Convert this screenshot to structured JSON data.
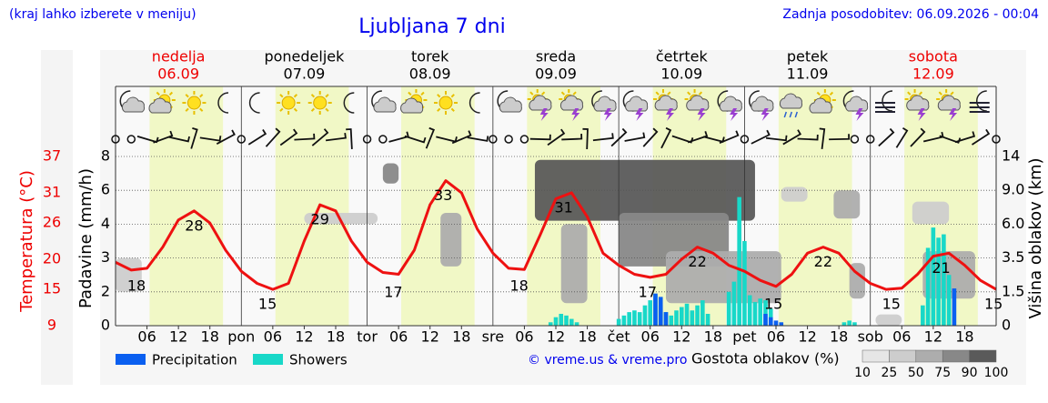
{
  "header": {
    "hint": "(kraj lahko izberete v meniju)",
    "title": "Ljubljana 7 dni",
    "updated": "Zadnja posodobitev: 06.09.2026 - 00:04"
  },
  "days": [
    {
      "name": "nedelja",
      "date": "06.09",
      "color": "#ee0000"
    },
    {
      "name": "ponedeljek",
      "date": "07.09",
      "color": "#000000"
    },
    {
      "name": "torek",
      "date": "08.09",
      "color": "#000000"
    },
    {
      "name": "sreda",
      "date": "09.09",
      "color": "#000000"
    },
    {
      "name": "četrtek",
      "date": "10.09",
      "color": "#000000"
    },
    {
      "name": "petek",
      "date": "11.09",
      "color": "#000000"
    },
    {
      "name": "sobota",
      "date": "12.09",
      "color": "#ee0000"
    }
  ],
  "credit": "© vreme.us & vreme.pro",
  "chart_data": [
    {
      "type": "line",
      "y_label": "Temperatura (°C)",
      "color": "#ee1111",
      "ylim": [
        9,
        37
      ],
      "yticks": [
        37,
        31,
        26,
        20,
        15,
        9
      ],
      "x": [
        0,
        3,
        6,
        9,
        12,
        15,
        18,
        21,
        24,
        27,
        30,
        33,
        36,
        39,
        42,
        45,
        48,
        51,
        54,
        57,
        60,
        63,
        66,
        69,
        72,
        75,
        78,
        81,
        84,
        87,
        90,
        93,
        96,
        99,
        102,
        105,
        108,
        111,
        114,
        117,
        120,
        123,
        126,
        129,
        132,
        135,
        138,
        141,
        144,
        147,
        150,
        153,
        156,
        159,
        162,
        165,
        168
      ],
      "values": [
        19.5,
        18.2,
        18.5,
        22,
        26.5,
        28,
        26,
        21.5,
        18,
        16,
        15,
        16,
        23,
        29,
        28,
        23,
        19.5,
        17.8,
        17.5,
        21.5,
        29,
        33,
        31,
        25,
        21,
        18.5,
        18.3,
        24,
        30,
        31,
        27,
        21,
        19,
        17.5,
        17,
        17.5,
        20,
        22,
        21,
        19,
        18,
        16.5,
        15.5,
        17.5,
        21,
        22,
        21,
        18,
        16,
        15,
        15.2,
        17.5,
        20.5,
        21,
        19,
        16.5,
        15
      ],
      "labels": [
        {
          "x": 4,
          "value": 18
        },
        {
          "x": 15,
          "value": 28
        },
        {
          "x": 29,
          "value": 15
        },
        {
          "x": 39,
          "value": 29
        },
        {
          "x": 53,
          "value": 17
        },
        {
          "x": 62.5,
          "value": 33
        },
        {
          "x": 77,
          "value": 18
        },
        {
          "x": 85.5,
          "value": 31
        },
        {
          "x": 101.5,
          "value": 17
        },
        {
          "x": 111,
          "value": 22
        },
        {
          "x": 125.5,
          "value": 15
        },
        {
          "x": 135,
          "value": 22
        },
        {
          "x": 148,
          "value": 15
        },
        {
          "x": 157.5,
          "value": 21
        },
        {
          "x": 167.5,
          "value": 15
        }
      ]
    },
    {
      "type": "bar",
      "y_label": "Padavine (mm/h)",
      "ylim": [
        0,
        8
      ],
      "yticks": [
        0,
        2,
        3,
        4,
        6,
        8
      ],
      "grid": true,
      "xlim": [
        0,
        168
      ],
      "xticks": [
        {
          "value": 6,
          "label": "06"
        },
        12,
        18,
        {
          "value": 24,
          "label": "pon"
        },
        {
          "value": 30,
          "label": "06"
        },
        {
          "value": 36,
          "label": "12"
        },
        {
          "value": 42,
          "label": "18"
        },
        {
          "value": 48,
          "label": "tor"
        },
        {
          "value": 54,
          "label": "06"
        },
        {
          "value": 60,
          "label": "12"
        },
        {
          "value": 66,
          "label": "18"
        },
        {
          "value": 72,
          "label": "sre"
        },
        {
          "value": 78,
          "label": "06"
        },
        {
          "value": 84,
          "label": "12"
        },
        {
          "value": 90,
          "label": "18"
        },
        {
          "value": 96,
          "label": "čet"
        },
        {
          "value": 102,
          "label": "06"
        },
        {
          "value": 108,
          "label": "12"
        },
        {
          "value": 114,
          "label": "18"
        },
        {
          "value": 120,
          "label": "pet"
        },
        {
          "value": 126,
          "label": "06"
        },
        {
          "value": 132,
          "label": "12"
        },
        {
          "value": 138,
          "label": "18"
        },
        {
          "value": 144,
          "label": "sob"
        },
        {
          "value": 150,
          "label": "06"
        },
        {
          "value": 156,
          "label": "12"
        },
        {
          "value": 162,
          "label": "18"
        }
      ],
      "series": [
        {
          "name": "Showers",
          "color": "#18d8c8",
          "x": [
            83,
            84,
            85,
            86,
            87,
            88,
            96,
            97,
            98,
            99,
            100,
            101,
            102,
            103,
            104,
            105,
            106,
            107,
            108,
            109,
            110,
            111,
            112,
            113,
            117,
            118,
            119,
            120,
            121,
            122,
            123,
            124,
            125,
            139,
            140,
            141,
            154,
            155,
            156,
            157,
            158,
            159
          ],
          "values": [
            0.2,
            0.5,
            0.7,
            0.6,
            0.4,
            0.2,
            0.4,
            0.6,
            0.8,
            0.9,
            0.8,
            1.2,
            1.5,
            1.8,
            1.2,
            0.8,
            0.6,
            0.9,
            1.1,
            1.3,
            0.9,
            1.2,
            1.5,
            0.7,
            2.0,
            2.3,
            5.6,
            3.5,
            1.8,
            1.4,
            1.6,
            1.5,
            1.0,
            0.2,
            0.3,
            0.2,
            1.2,
            3.3,
            3.9,
            3.6,
            3.7,
            2.5
          ]
        },
        {
          "name": "Precipitation",
          "color": "#0a5ff0",
          "x": [
            103,
            104,
            105,
            124,
            125,
            126,
            127,
            160
          ],
          "values": [
            1.9,
            1.7,
            0.8,
            0.7,
            0.5,
            0.3,
            0.2,
            2.1
          ]
        }
      ]
    },
    {
      "type": "heatmap",
      "y_label": "Višina oblakov (km)",
      "legend_title": "Gostota oblakov (%)",
      "ylim": [
        0,
        14
      ],
      "yticks": [
        0,
        1.5,
        3.5,
        {
          "value": 6,
          "label": "6.0"
        },
        {
          "value": 9,
          "label": "9.0"
        },
        14
      ],
      "legend_ticks": [
        10,
        25,
        50,
        75,
        90,
        100
      ],
      "colors": [
        "#e6e6e6",
        "#cdcdcd",
        "#adadad",
        "#888888",
        "#5a5a5a"
      ],
      "clouds": [
        {
          "x": [
            0,
            5
          ],
          "km": [
            1.5,
            3.5
          ],
          "density": 25
        },
        {
          "x": [
            36,
            50
          ],
          "km": [
            6,
            7
          ],
          "density": 25
        },
        {
          "x": [
            51,
            54
          ],
          "km": [
            10,
            13
          ],
          "density": 75
        },
        {
          "x": [
            62,
            66
          ],
          "km": [
            3,
            7
          ],
          "density": 50
        },
        {
          "x": [
            80,
            122
          ],
          "km": [
            6.3,
            13.5
          ],
          "density": 90
        },
        {
          "x": [
            85,
            90
          ],
          "km": [
            1,
            6
          ],
          "density": 50
        },
        {
          "x": [
            96,
            117
          ],
          "km": [
            3,
            7
          ],
          "density": 75
        },
        {
          "x": [
            105,
            127
          ],
          "km": [
            1,
            4
          ],
          "density": 50
        },
        {
          "x": [
            127,
            132
          ],
          "km": [
            8,
            9.5
          ],
          "density": 25
        },
        {
          "x": [
            137,
            142
          ],
          "km": [
            6.5,
            9
          ],
          "density": 50
        },
        {
          "x": [
            140,
            143
          ],
          "km": [
            1.2,
            3.2
          ],
          "density": 50
        },
        {
          "x": [
            145,
            150
          ],
          "km": [
            0,
            0.5
          ],
          "density": 25
        },
        {
          "x": [
            152,
            159
          ],
          "km": [
            6,
            8
          ],
          "density": 25
        },
        {
          "x": [
            154,
            164
          ],
          "km": [
            1.2,
            4
          ],
          "density": 50
        }
      ]
    }
  ]
}
